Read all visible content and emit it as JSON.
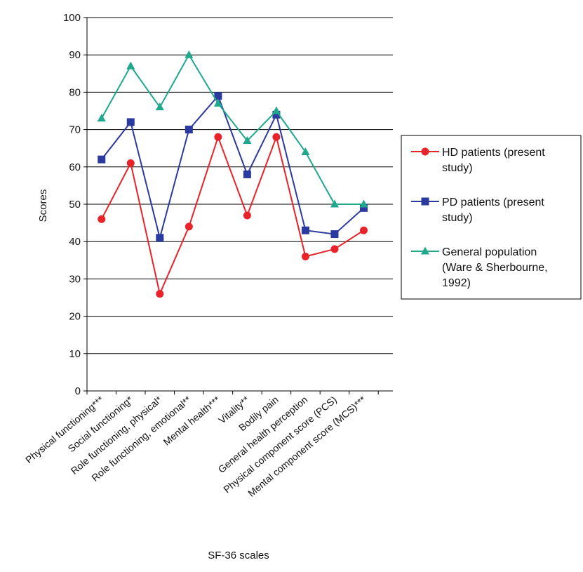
{
  "chart_data": {
    "type": "line",
    "xlabel": "SF-36 scales",
    "ylabel": "Scores",
    "ylim": [
      0,
      100
    ],
    "yticks": [
      0,
      10,
      20,
      30,
      40,
      50,
      60,
      70,
      80,
      90,
      100
    ],
    "grid": "horizontal",
    "legend_position": "right",
    "categories": [
      "Physical functioning***",
      "Social functioning*",
      "Role functioning, physical*",
      "Role functioning, emotional**",
      "Mental health***",
      "Vitality**",
      "Bodily pain",
      "General health perception",
      "Physical component score (PCS)",
      "Mental component score (MCS)***"
    ],
    "series": [
      {
        "name": "HD patients (present study)",
        "legend_lines": [
          "HD patients (present",
          "study)"
        ],
        "color": "#e8232a",
        "marker": "circle",
        "values": [
          46,
          61,
          26,
          44,
          68,
          47,
          68,
          36,
          38,
          43
        ]
      },
      {
        "name": "PD patients (present study)",
        "legend_lines": [
          "PD patients (present",
          "study)"
        ],
        "color": "#2b3a9e",
        "marker": "square",
        "values": [
          62,
          72,
          41,
          70,
          79,
          58,
          74,
          43,
          42,
          49
        ]
      },
      {
        "name": "General population (Ware & Sherbourne, 1992)",
        "legend_lines": [
          "General population",
          "(Ware & Sherbourne,",
          "1992)"
        ],
        "color": "#1fa88c",
        "marker": "triangle",
        "values": [
          73,
          87,
          76,
          90,
          77,
          67,
          75,
          64,
          50,
          50
        ]
      }
    ]
  }
}
